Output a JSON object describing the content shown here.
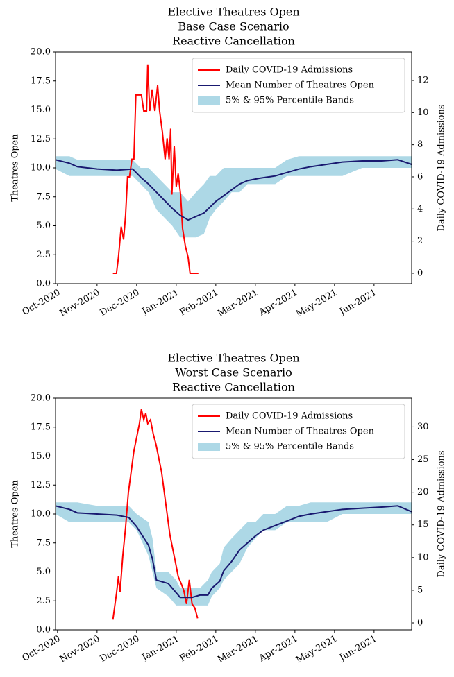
{
  "chart_data": [
    {
      "type": "line",
      "title": [
        "Elective Theatres Open",
        "Base Case Scenario",
        "Reactive Cancellation"
      ],
      "ylabel": "Theatres Open",
      "y2label": "Daily COVID-19 Admissions",
      "xlim": [
        -0.05,
        8.95
      ],
      "xticks": [
        {
          "value": 0,
          "label": "Oct-2020"
        },
        {
          "value": 1,
          "label": "Nov-2020"
        },
        {
          "value": 2,
          "label": "Dec-2020"
        },
        {
          "value": 3,
          "label": "Jan-2021"
        },
        {
          "value": 4,
          "label": "Feb-2021"
        },
        {
          "value": 5,
          "label": "Mar-2021"
        },
        {
          "value": 6,
          "label": "Apr-2021"
        },
        {
          "value": 7,
          "label": "May-2021"
        },
        {
          "value": 8,
          "label": "Jun-2021"
        }
      ],
      "ylim": [
        0,
        20
      ],
      "yticks": [
        {
          "value": 0,
          "label": "0.0"
        },
        {
          "value": 2.5,
          "label": "2.5"
        },
        {
          "value": 5,
          "label": "5.0"
        },
        {
          "value": 7.5,
          "label": "7.5"
        },
        {
          "value": 10,
          "label": "10.0"
        },
        {
          "value": 12.5,
          "label": "12.5"
        },
        {
          "value": 15,
          "label": "15.0"
        },
        {
          "value": 17.5,
          "label": "17.5"
        },
        {
          "value": 20,
          "label": "20.0"
        }
      ],
      "y2lim": [
        -0.65,
        13.77
      ],
      "y2ticks": [
        0,
        2,
        4,
        6,
        8,
        10,
        12
      ],
      "legend": "upper right",
      "series": [
        {
          "name": "Daily COVID-19 Admissions",
          "color": "#ff0000",
          "axis": "y2",
          "x": [
            1.4,
            1.49,
            1.54,
            1.61,
            1.67,
            1.72,
            1.77,
            1.82,
            1.88,
            1.93,
            1.98,
            2.05,
            2.12,
            2.18,
            2.25,
            2.28,
            2.33,
            2.39,
            2.46,
            2.53,
            2.58,
            2.65,
            2.72,
            2.77,
            2.82,
            2.86,
            2.89,
            2.95,
            3.0,
            3.05,
            3.11,
            3.16,
            3.23,
            3.3,
            3.35,
            3.56
          ],
          "values": [
            0,
            0,
            1.0,
            2.9,
            2.1,
            3.6,
            6.0,
            6.0,
            7.1,
            7.1,
            11.1,
            11.1,
            11.1,
            10.1,
            10.1,
            13.0,
            10.1,
            11.4,
            10.1,
            11.7,
            10.1,
            8.8,
            7.1,
            8.4,
            7.1,
            9.0,
            4.9,
            7.9,
            5.4,
            6.2,
            4.9,
            2.8,
            1.7,
            1.0,
            0,
            0
          ]
        },
        {
          "name": "Mean Number of Theatres Open",
          "color": "#191970",
          "axis": "y",
          "x": [
            -0.05,
            0.3,
            0.5,
            1.0,
            1.5,
            1.9,
            2.1,
            2.3,
            2.5,
            2.7,
            2.9,
            3.1,
            3.3,
            3.5,
            3.7,
            3.85,
            4.0,
            4.2,
            4.4,
            4.6,
            4.8,
            5.1,
            5.5,
            5.8,
            6.1,
            6.4,
            6.8,
            7.2,
            7.7,
            8.2,
            8.6,
            8.95
          ],
          "values": [
            10.7,
            10.4,
            10.1,
            9.9,
            9.8,
            9.9,
            9.2,
            8.6,
            7.9,
            7.2,
            6.5,
            5.9,
            5.5,
            5.8,
            6.1,
            6.6,
            7.1,
            7.6,
            8.1,
            8.6,
            8.9,
            9.1,
            9.3,
            9.6,
            9.9,
            10.1,
            10.3,
            10.5,
            10.6,
            10.6,
            10.7,
            10.3
          ]
        },
        {
          "type": "band",
          "name": "5% & 95% Percentile Bands",
          "color": "#add8e6",
          "axis": "y",
          "x": [
            -0.05,
            0.3,
            0.5,
            1.0,
            1.5,
            1.9,
            2.1,
            2.3,
            2.5,
            2.7,
            2.9,
            3.1,
            3.3,
            3.5,
            3.7,
            3.85,
            4.0,
            4.2,
            4.4,
            4.6,
            4.8,
            5.1,
            5.5,
            5.8,
            6.1,
            6.4,
            6.8,
            7.2,
            7.7,
            8.2,
            8.6,
            8.95
          ],
          "lower": [
            9.9,
            9.3,
            9.3,
            9.3,
            9.3,
            9.3,
            8.6,
            7.9,
            6.4,
            5.7,
            5.0,
            4.0,
            4.0,
            4.0,
            4.3,
            5.7,
            6.4,
            7.1,
            7.9,
            7.9,
            8.6,
            8.6,
            8.6,
            9.3,
            9.3,
            9.3,
            9.3,
            9.3,
            10.0,
            10.0,
            10.0,
            10.0
          ],
          "upper": [
            11.0,
            11.0,
            10.7,
            10.7,
            10.7,
            10.7,
            10.0,
            10.0,
            9.3,
            8.6,
            7.9,
            7.9,
            7.1,
            7.9,
            8.6,
            9.3,
            9.3,
            10.0,
            10.0,
            10.0,
            10.0,
            10.0,
            10.0,
            10.7,
            11.0,
            11.0,
            11.0,
            11.0,
            11.0,
            11.0,
            11.0,
            11.0
          ]
        }
      ]
    },
    {
      "type": "line",
      "title": [
        "Elective Theatres Open",
        "Worst Case Scenario",
        "Reactive Cancellation"
      ],
      "ylabel": "Theatres Open",
      "y2label": "Daily COVID-19 Admissions",
      "xlim": [
        -0.05,
        8.95
      ],
      "xticks": [
        {
          "value": 0,
          "label": "Oct-2020"
        },
        {
          "value": 1,
          "label": "Nov-2020"
        },
        {
          "value": 2,
          "label": "Dec-2020"
        },
        {
          "value": 3,
          "label": "Jan-2021"
        },
        {
          "value": 4,
          "label": "Feb-2021"
        },
        {
          "value": 5,
          "label": "Mar-2021"
        },
        {
          "value": 6,
          "label": "Apr-2021"
        },
        {
          "value": 7,
          "label": "May-2021"
        },
        {
          "value": 8,
          "label": "Jun-2021"
        }
      ],
      "ylim": [
        0,
        20
      ],
      "yticks": [
        {
          "value": 0,
          "label": "0.0"
        },
        {
          "value": 2.5,
          "label": "2.5"
        },
        {
          "value": 5,
          "label": "5.0"
        },
        {
          "value": 7.5,
          "label": "7.5"
        },
        {
          "value": 10,
          "label": "10.0"
        },
        {
          "value": 12.5,
          "label": "12.5"
        },
        {
          "value": 15,
          "label": "15.0"
        },
        {
          "value": 17.5,
          "label": "17.5"
        },
        {
          "value": 20,
          "label": "20.0"
        }
      ],
      "y2lim": [
        -1.06,
        34.4
      ],
      "y2ticks": [
        0,
        5,
        10,
        15,
        20,
        25,
        30
      ],
      "legend": "upper right",
      "series": [
        {
          "name": "Daily COVID-19 Admissions",
          "color": "#ff0000",
          "axis": "y2",
          "x": [
            1.4,
            1.49,
            1.54,
            1.58,
            1.65,
            1.72,
            1.79,
            1.86,
            1.93,
            2.0,
            2.07,
            2.12,
            2.18,
            2.23,
            2.28,
            2.35,
            2.42,
            2.49,
            2.56,
            2.63,
            2.7,
            2.77,
            2.84,
            2.91,
            2.98,
            3.05,
            3.12,
            3.19,
            3.26,
            3.33,
            3.4,
            3.47,
            3.54
          ],
          "values": [
            0.5,
            4.5,
            7.1,
            4.7,
            10.3,
            14.6,
            19.9,
            23.1,
            26.3,
            28.4,
            30.5,
            32.7,
            31.1,
            32.1,
            30.5,
            31.1,
            28.9,
            27.3,
            25.2,
            23.1,
            19.9,
            16.7,
            13.5,
            11.4,
            9.3,
            7.1,
            6.1,
            5.0,
            2.9,
            6.6,
            2.9,
            2.3,
            0.7
          ]
        },
        {
          "name": "Mean Number of Theatres Open",
          "color": "#191970",
          "axis": "y",
          "x": [
            -0.05,
            0.3,
            0.5,
            1.0,
            1.5,
            1.8,
            2.0,
            2.3,
            2.4,
            2.5,
            2.8,
            3.0,
            3.1,
            3.4,
            3.6,
            3.8,
            3.9,
            4.1,
            4.2,
            4.4,
            4.6,
            4.8,
            5.0,
            5.2,
            5.5,
            5.8,
            6.1,
            6.4,
            6.8,
            7.2,
            7.7,
            8.2,
            8.6,
            8.95
          ],
          "values": [
            10.7,
            10.4,
            10.1,
            10.0,
            9.9,
            9.7,
            8.9,
            7.3,
            6.1,
            4.3,
            4.0,
            3.2,
            2.8,
            2.8,
            3.0,
            3.0,
            3.6,
            4.2,
            5.1,
            5.9,
            6.9,
            7.5,
            8.1,
            8.6,
            9.0,
            9.4,
            9.8,
            10.0,
            10.2,
            10.4,
            10.5,
            10.6,
            10.7,
            10.2
          ]
        },
        {
          "type": "band",
          "name": "5% & 95% Percentile Bands",
          "color": "#add8e6",
          "axis": "y",
          "x": [
            -0.05,
            0.3,
            0.5,
            1.0,
            1.5,
            1.8,
            2.0,
            2.3,
            2.4,
            2.5,
            2.8,
            3.0,
            3.1,
            3.4,
            3.6,
            3.8,
            3.9,
            4.1,
            4.2,
            4.4,
            4.6,
            4.8,
            5.0,
            5.2,
            5.5,
            5.8,
            6.1,
            6.4,
            6.8,
            7.2,
            7.7,
            8.2,
            8.6,
            8.95
          ],
          "lower": [
            10.0,
            9.3,
            9.3,
            9.3,
            9.3,
            9.3,
            8.6,
            6.4,
            5.0,
            3.6,
            2.9,
            2.1,
            2.1,
            2.1,
            2.1,
            2.1,
            2.9,
            3.6,
            4.3,
            5.0,
            5.7,
            7.1,
            7.9,
            8.6,
            8.6,
            9.3,
            9.3,
            9.3,
            9.3,
            10.0,
            10.0,
            10.0,
            10.0,
            10.0
          ],
          "upper": [
            11.0,
            11.0,
            11.0,
            10.7,
            10.7,
            10.7,
            10.0,
            9.3,
            7.9,
            5.0,
            5.0,
            4.3,
            3.6,
            3.6,
            3.6,
            4.3,
            5.0,
            5.7,
            7.1,
            7.9,
            8.6,
            9.3,
            9.3,
            10.0,
            10.0,
            10.7,
            10.7,
            11.0,
            11.0,
            11.0,
            11.0,
            11.0,
            11.0,
            11.0
          ]
        }
      ]
    }
  ]
}
